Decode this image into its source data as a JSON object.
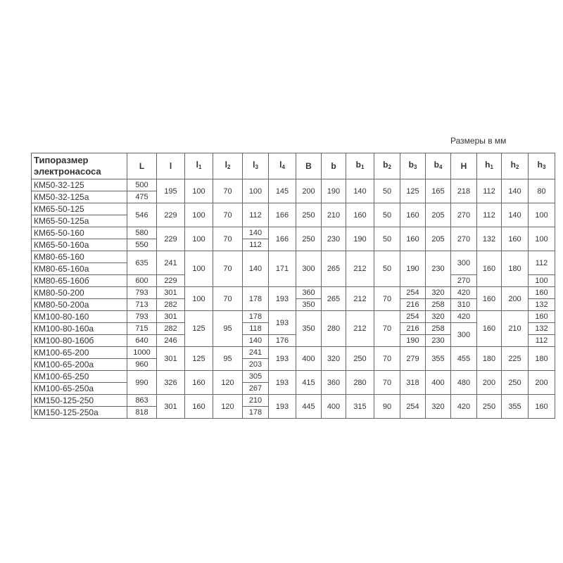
{
  "caption": "Размеры в мм",
  "table": {
    "headers": [
      {
        "t": "Типоразмер электронасоса"
      },
      {
        "t": "L"
      },
      {
        "t": "l"
      },
      {
        "t": "l",
        "s": "1"
      },
      {
        "t": "l",
        "s": "2"
      },
      {
        "t": "l",
        "s": "3"
      },
      {
        "t": "l",
        "s": "4"
      },
      {
        "t": "B"
      },
      {
        "t": "b"
      },
      {
        "t": "b",
        "s": "1"
      },
      {
        "t": "b",
        "s": "2"
      },
      {
        "t": "b",
        "s": "3"
      },
      {
        "t": "b",
        "s": "4"
      },
      {
        "t": "H"
      },
      {
        "t": "h",
        "s": "1"
      },
      {
        "t": "h",
        "s": "2"
      },
      {
        "t": "h",
        "s": "3"
      }
    ],
    "rows": [
      [
        "КМ50-32-125",
        "500",
        [
          "195",
          2
        ],
        [
          "100",
          2
        ],
        [
          "70",
          2
        ],
        [
          "100",
          2
        ],
        [
          "145",
          2
        ],
        [
          "200",
          2
        ],
        [
          "190",
          2
        ],
        [
          "140",
          2
        ],
        [
          "50",
          2
        ],
        [
          "125",
          2
        ],
        [
          "165",
          2
        ],
        [
          "218",
          2
        ],
        [
          "112",
          2
        ],
        [
          "140",
          2
        ],
        [
          "80",
          2
        ]
      ],
      [
        "КМ50-32-125а",
        "475"
      ],
      [
        "КМ65-50-125",
        [
          "546",
          2
        ],
        [
          "229",
          2
        ],
        [
          "100",
          2
        ],
        [
          "70",
          2
        ],
        [
          "112",
          2
        ],
        [
          "166",
          2
        ],
        [
          "250",
          2
        ],
        [
          "210",
          2
        ],
        [
          "160",
          2
        ],
        [
          "50",
          2
        ],
        [
          "160",
          2
        ],
        [
          "205",
          2
        ],
        [
          "270",
          2
        ],
        [
          "112",
          2
        ],
        [
          "140",
          2
        ],
        [
          "100",
          2
        ]
      ],
      [
        "КМ65-50-125а"
      ],
      [
        "КМ65-50-160",
        "580",
        [
          "229",
          2
        ],
        [
          "100",
          2
        ],
        [
          "70",
          2
        ],
        "140",
        [
          "166",
          2
        ],
        [
          "250",
          2
        ],
        [
          "230",
          2
        ],
        [
          "190",
          2
        ],
        [
          "50",
          2
        ],
        [
          "160",
          2
        ],
        [
          "205",
          2
        ],
        [
          "270",
          2
        ],
        [
          "132",
          2
        ],
        [
          "160",
          2
        ],
        [
          "100",
          2
        ]
      ],
      [
        "КМ65-50-160а",
        "550",
        "112"
      ],
      [
        "КМ80-65-160",
        [
          "635",
          2
        ],
        [
          "241",
          2
        ],
        [
          "100",
          3
        ],
        [
          "70",
          3
        ],
        [
          "140",
          3
        ],
        [
          "171",
          3
        ],
        [
          "300",
          3
        ],
        [
          "265",
          3
        ],
        [
          "212",
          3
        ],
        [
          "50",
          3
        ],
        [
          "190",
          3
        ],
        [
          "230",
          3
        ],
        [
          "300",
          2
        ],
        [
          "160",
          3
        ],
        [
          "180",
          3
        ],
        [
          "112",
          2
        ]
      ],
      [
        "КМ80-65-160а"
      ],
      [
        "КМ80-65-160б",
        "600",
        "229",
        "270",
        "100"
      ],
      [
        "КМ80-50-200",
        "793",
        "301",
        [
          "100",
          2
        ],
        [
          "70",
          2
        ],
        [
          "178",
          2
        ],
        [
          "193",
          2
        ],
        "360",
        [
          "265",
          2
        ],
        [
          "212",
          2
        ],
        [
          "70",
          2
        ],
        "254",
        "320",
        "420",
        [
          "160",
          2
        ],
        [
          "200",
          2
        ],
        "160"
      ],
      [
        "КМ80-50-200а",
        "713",
        "282",
        "350",
        "216",
        "258",
        "310",
        "132"
      ],
      [
        "КМ100-80-160",
        "793",
        "301",
        [
          "125",
          3
        ],
        [
          "95",
          3
        ],
        "178",
        [
          "193",
          2
        ],
        [
          "350",
          3
        ],
        [
          "280",
          3
        ],
        [
          "212",
          3
        ],
        [
          "70",
          3
        ],
        "254",
        "320",
        "420",
        [
          "160",
          3
        ],
        [
          "210",
          3
        ],
        "160"
      ],
      [
        "КМ100-80-160а",
        "715",
        "282",
        "118",
        "216",
        "258",
        [
          "300",
          2
        ],
        "132"
      ],
      [
        "КМ100-80-160б",
        "640",
        "246",
        "140",
        "176",
        "190",
        "230",
        "112"
      ],
      [
        "КМ100-65-200",
        "1000",
        [
          "301",
          2
        ],
        [
          "125",
          2
        ],
        [
          "95",
          2
        ],
        "241",
        [
          "193",
          2
        ],
        [
          "400",
          2
        ],
        [
          "320",
          2
        ],
        [
          "250",
          2
        ],
        [
          "70",
          2
        ],
        [
          "279",
          2
        ],
        [
          "355",
          2
        ],
        [
          "455",
          2
        ],
        [
          "180",
          2
        ],
        [
          "225",
          2
        ],
        [
          "180",
          2
        ]
      ],
      [
        "КМ100-65-200а",
        "960",
        "203"
      ],
      [
        "КМ100-65-250",
        [
          "990",
          2
        ],
        [
          "326",
          2
        ],
        [
          "160",
          2
        ],
        [
          "120",
          2
        ],
        "305",
        [
          "193",
          2
        ],
        [
          "415",
          2
        ],
        [
          "360",
          2
        ],
        [
          "280",
          2
        ],
        [
          "70",
          2
        ],
        [
          "318",
          2
        ],
        [
          "400",
          2
        ],
        [
          "480",
          2
        ],
        [
          "200",
          2
        ],
        [
          "250",
          2
        ],
        [
          "200",
          2
        ]
      ],
      [
        "КМ100-65-250а",
        "267"
      ],
      [
        "КМ150-125-250",
        "863",
        [
          "301",
          2
        ],
        [
          "160",
          2
        ],
        [
          "120",
          2
        ],
        "210",
        [
          "193",
          2
        ],
        [
          "445",
          2
        ],
        [
          "400",
          2
        ],
        [
          "315",
          2
        ],
        [
          "90",
          2
        ],
        [
          "254",
          2
        ],
        [
          "320",
          2
        ],
        [
          "420",
          2
        ],
        [
          "250",
          2
        ],
        [
          "355",
          2
        ],
        [
          "160",
          2
        ]
      ],
      [
        "КМ150-125-250а",
        "818",
        "178"
      ]
    ]
  }
}
